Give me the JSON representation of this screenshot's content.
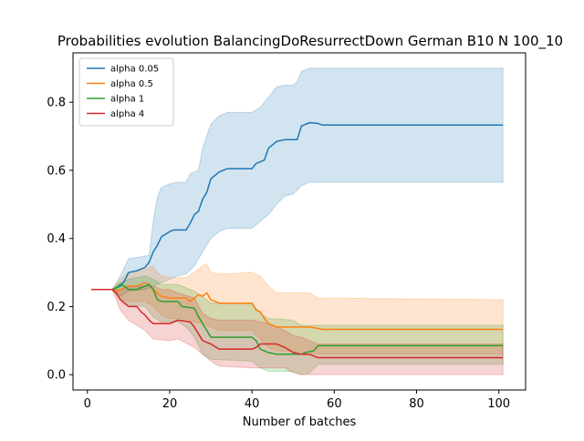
{
  "chart_data": {
    "type": "line",
    "title": "Probabilities evolution BalancingDoResurrectDown German B10 N 100_10",
    "xlabel": "Number of batches",
    "ylabel": "",
    "xlim": [
      -3.5,
      106.5
    ],
    "ylim": [
      -0.045,
      0.945
    ],
    "x_ticks": [
      0,
      20,
      40,
      60,
      80,
      100
    ],
    "y_ticks": [
      0.0,
      0.2,
      0.4,
      0.6,
      0.8
    ],
    "x_tick_labels": [
      "0",
      "20",
      "40",
      "60",
      "80",
      "100"
    ],
    "y_tick_labels": [
      "0.0",
      "0.2",
      "0.4",
      "0.6",
      "0.8"
    ],
    "legend": {
      "placement": "upper-left"
    },
    "grid": false,
    "series": [
      {
        "name": "alpha 0.05",
        "color": "#1f77b4",
        "points": [
          [
            1,
            0.25
          ],
          [
            6,
            0.25
          ],
          [
            7,
            0.255
          ],
          [
            8,
            0.26
          ],
          [
            9,
            0.275
          ],
          [
            10,
            0.3
          ],
          [
            12,
            0.305
          ],
          [
            14,
            0.315
          ],
          [
            15,
            0.33
          ],
          [
            16,
            0.36
          ],
          [
            17,
            0.38
          ],
          [
            18,
            0.405
          ],
          [
            20,
            0.42
          ],
          [
            21,
            0.425
          ],
          [
            24,
            0.425
          ],
          [
            25,
            0.445
          ],
          [
            26,
            0.47
          ],
          [
            27,
            0.48
          ],
          [
            28,
            0.515
          ],
          [
            29,
            0.535
          ],
          [
            30,
            0.575
          ],
          [
            32,
            0.595
          ],
          [
            34,
            0.605
          ],
          [
            40,
            0.605
          ],
          [
            41,
            0.62
          ],
          [
            43,
            0.63
          ],
          [
            44,
            0.665
          ],
          [
            46,
            0.685
          ],
          [
            48,
            0.69
          ],
          [
            51,
            0.69
          ],
          [
            52,
            0.73
          ],
          [
            54,
            0.74
          ],
          [
            56,
            0.738
          ],
          [
            57,
            0.733
          ],
          [
            101,
            0.733
          ]
        ],
        "band_upper": [
          [
            1,
            0.25
          ],
          [
            6,
            0.25
          ],
          [
            8,
            0.29
          ],
          [
            10,
            0.34
          ],
          [
            15,
            0.35
          ],
          [
            16,
            0.45
          ],
          [
            17,
            0.52
          ],
          [
            18,
            0.55
          ],
          [
            20,
            0.56
          ],
          [
            22,
            0.565
          ],
          [
            24,
            0.565
          ],
          [
            25,
            0.59
          ],
          [
            27,
            0.6
          ],
          [
            28,
            0.665
          ],
          [
            29,
            0.7
          ],
          [
            30,
            0.735
          ],
          [
            32,
            0.76
          ],
          [
            34,
            0.77
          ],
          [
            40,
            0.77
          ],
          [
            42,
            0.785
          ],
          [
            44,
            0.815
          ],
          [
            46,
            0.845
          ],
          [
            48,
            0.85
          ],
          [
            50,
            0.85
          ],
          [
            51,
            0.86
          ],
          [
            52,
            0.89
          ],
          [
            54,
            0.9
          ],
          [
            101,
            0.9
          ]
        ],
        "band_lower": [
          [
            1,
            0.25
          ],
          [
            6,
            0.25
          ],
          [
            8,
            0.23
          ],
          [
            10,
            0.245
          ],
          [
            14,
            0.25
          ],
          [
            16,
            0.26
          ],
          [
            18,
            0.27
          ],
          [
            20,
            0.28
          ],
          [
            22,
            0.29
          ],
          [
            24,
            0.295
          ],
          [
            26,
            0.32
          ],
          [
            28,
            0.36
          ],
          [
            30,
            0.4
          ],
          [
            32,
            0.42
          ],
          [
            34,
            0.43
          ],
          [
            40,
            0.43
          ],
          [
            42,
            0.45
          ],
          [
            44,
            0.47
          ],
          [
            46,
            0.5
          ],
          [
            48,
            0.525
          ],
          [
            50,
            0.53
          ],
          [
            52,
            0.555
          ],
          [
            54,
            0.565
          ],
          [
            101,
            0.565
          ]
        ]
      },
      {
        "name": "alpha 0.5",
        "color": "#ff7f0e",
        "points": [
          [
            1,
            0.25
          ],
          [
            6,
            0.25
          ],
          [
            7,
            0.245
          ],
          [
            9,
            0.255
          ],
          [
            10,
            0.26
          ],
          [
            12,
            0.26
          ],
          [
            13,
            0.265
          ],
          [
            14,
            0.27
          ],
          [
            15,
            0.265
          ],
          [
            16,
            0.25
          ],
          [
            17,
            0.24
          ],
          [
            18,
            0.23
          ],
          [
            20,
            0.225
          ],
          [
            24,
            0.225
          ],
          [
            25,
            0.215
          ],
          [
            26,
            0.225
          ],
          [
            27,
            0.235
          ],
          [
            28,
            0.23
          ],
          [
            29,
            0.24
          ],
          [
            30,
            0.22
          ],
          [
            32,
            0.21
          ],
          [
            40,
            0.21
          ],
          [
            41,
            0.19
          ],
          [
            42,
            0.185
          ],
          [
            43,
            0.165
          ],
          [
            44,
            0.15
          ],
          [
            46,
            0.14
          ],
          [
            54,
            0.14
          ],
          [
            56,
            0.136
          ],
          [
            57,
            0.133
          ],
          [
            101,
            0.133
          ]
        ],
        "band_upper": [
          [
            1,
            0.25
          ],
          [
            6,
            0.25
          ],
          [
            8,
            0.28
          ],
          [
            10,
            0.3
          ],
          [
            14,
            0.31
          ],
          [
            16,
            0.32
          ],
          [
            17,
            0.3
          ],
          [
            18,
            0.29
          ],
          [
            20,
            0.285
          ],
          [
            24,
            0.285
          ],
          [
            26,
            0.3
          ],
          [
            28,
            0.32
          ],
          [
            29,
            0.325
          ],
          [
            30,
            0.3
          ],
          [
            32,
            0.295
          ],
          [
            40,
            0.3
          ],
          [
            42,
            0.29
          ],
          [
            44,
            0.26
          ],
          [
            46,
            0.24
          ],
          [
            54,
            0.24
          ],
          [
            56,
            0.225
          ],
          [
            101,
            0.22
          ]
        ],
        "band_lower": [
          [
            1,
            0.25
          ],
          [
            6,
            0.25
          ],
          [
            8,
            0.22
          ],
          [
            10,
            0.215
          ],
          [
            14,
            0.215
          ],
          [
            16,
            0.2
          ],
          [
            18,
            0.175
          ],
          [
            20,
            0.165
          ],
          [
            24,
            0.165
          ],
          [
            26,
            0.155
          ],
          [
            28,
            0.15
          ],
          [
            30,
            0.14
          ],
          [
            32,
            0.13
          ],
          [
            40,
            0.13
          ],
          [
            42,
            0.105
          ],
          [
            44,
            0.08
          ],
          [
            46,
            0.07
          ],
          [
            54,
            0.065
          ],
          [
            56,
            0.06
          ],
          [
            101,
            0.06
          ]
        ]
      },
      {
        "name": "alpha 1",
        "color": "#2ca02c",
        "points": [
          [
            1,
            0.25
          ],
          [
            6,
            0.25
          ],
          [
            7,
            0.255
          ],
          [
            8,
            0.265
          ],
          [
            9,
            0.26
          ],
          [
            10,
            0.25
          ],
          [
            12,
            0.25
          ],
          [
            13,
            0.255
          ],
          [
            14,
            0.26
          ],
          [
            15,
            0.265
          ],
          [
            16,
            0.25
          ],
          [
            17,
            0.22
          ],
          [
            18,
            0.215
          ],
          [
            22,
            0.215
          ],
          [
            23,
            0.2
          ],
          [
            26,
            0.195
          ],
          [
            27,
            0.17
          ],
          [
            28,
            0.15
          ],
          [
            29,
            0.13
          ],
          [
            30,
            0.11
          ],
          [
            40,
            0.11
          ],
          [
            41,
            0.1
          ],
          [
            42,
            0.075
          ],
          [
            44,
            0.065
          ],
          [
            46,
            0.06
          ],
          [
            52,
            0.06
          ],
          [
            53,
            0.065
          ],
          [
            55,
            0.07
          ],
          [
            56,
            0.085
          ],
          [
            101,
            0.085
          ]
        ],
        "band_upper": [
          [
            1,
            0.25
          ],
          [
            6,
            0.25
          ],
          [
            8,
            0.27
          ],
          [
            10,
            0.28
          ],
          [
            14,
            0.29
          ],
          [
            16,
            0.28
          ],
          [
            18,
            0.265
          ],
          [
            22,
            0.265
          ],
          [
            24,
            0.255
          ],
          [
            26,
            0.245
          ],
          [
            28,
            0.23
          ],
          [
            30,
            0.21
          ],
          [
            40,
            0.21
          ],
          [
            42,
            0.18
          ],
          [
            44,
            0.165
          ],
          [
            50,
            0.16
          ],
          [
            52,
            0.145
          ],
          [
            54,
            0.145
          ],
          [
            56,
            0.145
          ],
          [
            101,
            0.145
          ]
        ],
        "band_lower": [
          [
            1,
            0.25
          ],
          [
            6,
            0.25
          ],
          [
            8,
            0.22
          ],
          [
            10,
            0.205
          ],
          [
            14,
            0.2
          ],
          [
            16,
            0.17
          ],
          [
            18,
            0.155
          ],
          [
            22,
            0.155
          ],
          [
            24,
            0.14
          ],
          [
            26,
            0.11
          ],
          [
            28,
            0.06
          ],
          [
            30,
            0.045
          ],
          [
            40,
            0.04
          ],
          [
            42,
            0.02
          ],
          [
            44,
            0.01
          ],
          [
            50,
            0.01
          ],
          [
            52,
            0.0
          ],
          [
            54,
            0.005
          ],
          [
            56,
            0.03
          ],
          [
            101,
            0.03
          ]
        ]
      },
      {
        "name": "alpha 4",
        "color": "#d62728",
        "points": [
          [
            1,
            0.25
          ],
          [
            6,
            0.25
          ],
          [
            7,
            0.24
          ],
          [
            8,
            0.22
          ],
          [
            9,
            0.21
          ],
          [
            10,
            0.2
          ],
          [
            12,
            0.2
          ],
          [
            13,
            0.185
          ],
          [
            14,
            0.175
          ],
          [
            15,
            0.16
          ],
          [
            16,
            0.15
          ],
          [
            20,
            0.15
          ],
          [
            21,
            0.155
          ],
          [
            22,
            0.16
          ],
          [
            25,
            0.155
          ],
          [
            26,
            0.14
          ],
          [
            28,
            0.1
          ],
          [
            30,
            0.09
          ],
          [
            32,
            0.075
          ],
          [
            40,
            0.075
          ],
          [
            41,
            0.08
          ],
          [
            42,
            0.09
          ],
          [
            44,
            0.09
          ],
          [
            46,
            0.09
          ],
          [
            48,
            0.08
          ],
          [
            50,
            0.065
          ],
          [
            52,
            0.06
          ],
          [
            54,
            0.06
          ],
          [
            56,
            0.05
          ],
          [
            101,
            0.05
          ]
        ],
        "band_upper": [
          [
            1,
            0.25
          ],
          [
            6,
            0.25
          ],
          [
            8,
            0.25
          ],
          [
            10,
            0.26
          ],
          [
            14,
            0.26
          ],
          [
            16,
            0.26
          ],
          [
            18,
            0.25
          ],
          [
            20,
            0.25
          ],
          [
            22,
            0.24
          ],
          [
            26,
            0.225
          ],
          [
            28,
            0.18
          ],
          [
            30,
            0.165
          ],
          [
            32,
            0.16
          ],
          [
            40,
            0.16
          ],
          [
            42,
            0.155
          ],
          [
            44,
            0.15
          ],
          [
            46,
            0.14
          ],
          [
            48,
            0.13
          ],
          [
            50,
            0.115
          ],
          [
            52,
            0.11
          ],
          [
            54,
            0.1
          ],
          [
            56,
            0.09
          ],
          [
            101,
            0.09
          ]
        ],
        "band_lower": [
          [
            1,
            0.25
          ],
          [
            6,
            0.25
          ],
          [
            8,
            0.19
          ],
          [
            10,
            0.16
          ],
          [
            14,
            0.13
          ],
          [
            16,
            0.105
          ],
          [
            20,
            0.1
          ],
          [
            22,
            0.105
          ],
          [
            26,
            0.08
          ],
          [
            28,
            0.06
          ],
          [
            30,
            0.04
          ],
          [
            32,
            0.025
          ],
          [
            40,
            0.02
          ],
          [
            44,
            0.02
          ],
          [
            48,
            0.02
          ],
          [
            50,
            0.005
          ],
          [
            52,
            0.0
          ],
          [
            101,
            0.0
          ]
        ]
      }
    ]
  }
}
